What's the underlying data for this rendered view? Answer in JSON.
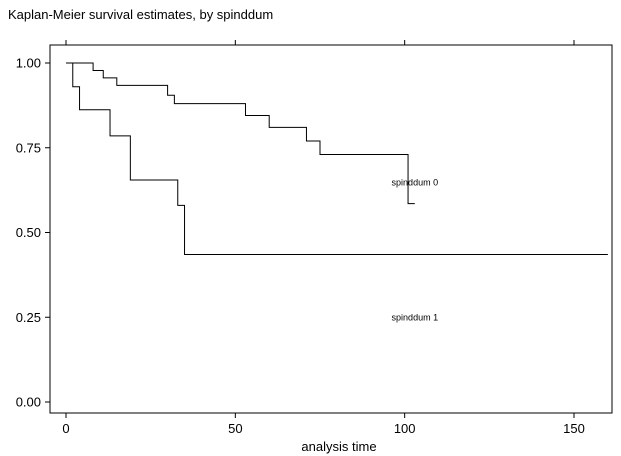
{
  "chart_data": {
    "type": "line",
    "step": true,
    "title": "Kaplan-Meier survival estimates, by spinddum",
    "xlabel": "analysis time",
    "ylabel": "",
    "xlim": [
      0,
      160
    ],
    "ylim": [
      0,
      1
    ],
    "x_ticks": [
      0,
      50,
      100,
      150
    ],
    "x_tick_labels": [
      "0",
      "50",
      "100",
      "150"
    ],
    "y_ticks": [
      0,
      0.25,
      0.5,
      0.75,
      1
    ],
    "y_tick_labels": [
      "0.00",
      "0.25",
      "0.50",
      "0.75",
      "1.00"
    ],
    "grid": false,
    "legend": "inline labels",
    "colors": {
      "line": "#000000",
      "axes": "#000000",
      "background": "#ffffff"
    },
    "series": [
      {
        "name": "spinddum 0",
        "label_at": [
          103,
          0.647
        ],
        "points": [
          [
            0,
            1.0
          ],
          [
            8,
            0.978
          ],
          [
            11,
            0.956
          ],
          [
            15,
            0.934
          ],
          [
            30,
            0.905
          ],
          [
            32,
            0.88
          ],
          [
            53,
            0.845
          ],
          [
            60,
            0.81
          ],
          [
            71,
            0.77
          ],
          [
            75,
            0.73
          ],
          [
            101,
            0.585
          ],
          [
            103,
            0.585
          ]
        ]
      },
      {
        "name": "spinddum 1",
        "label_at": [
          103,
          0.25
        ],
        "points": [
          [
            0,
            1.0
          ],
          [
            2,
            0.93
          ],
          [
            4,
            0.862
          ],
          [
            13,
            0.785
          ],
          [
            19,
            0.655
          ],
          [
            33,
            0.58
          ],
          [
            35,
            0.435
          ],
          [
            160,
            0.435
          ]
        ]
      }
    ]
  }
}
